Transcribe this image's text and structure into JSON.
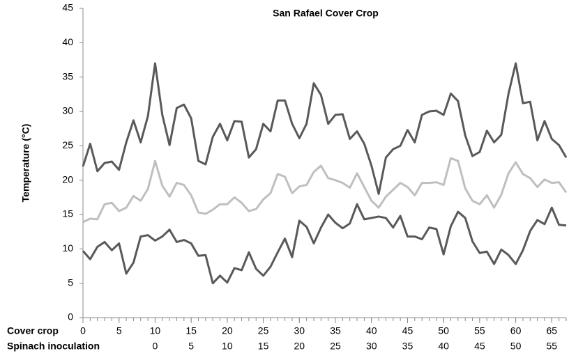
{
  "chart_data": {
    "type": "line",
    "title": "San Rafael Cover Crop",
    "ylabel": "Temperature (°C)",
    "xlabel": "Cover crop",
    "x2label": "Spinach inoculation",
    "x": [
      0,
      1,
      2,
      3,
      4,
      5,
      6,
      7,
      8,
      9,
      10,
      11,
      12,
      13,
      14,
      15,
      16,
      17,
      18,
      19,
      20,
      21,
      22,
      23,
      24,
      25,
      26,
      27,
      28,
      29,
      30,
      31,
      32,
      33,
      34,
      35,
      36,
      37,
      38,
      39,
      40,
      41,
      42,
      43,
      44,
      45,
      46,
      47,
      48,
      49,
      50,
      51,
      52,
      53,
      54,
      55,
      56,
      57,
      58,
      59,
      60,
      61,
      62,
      63,
      64,
      65,
      66,
      67
    ],
    "series": [
      {
        "color": "#595959",
        "values": [
          22,
          25.3,
          21.3,
          22.5,
          22.7,
          21.5,
          25.5,
          28.7,
          25.5,
          29.3,
          37,
          29.5,
          25.1,
          30.5,
          31,
          29,
          22.8,
          22.3,
          26.3,
          28.2,
          25.8,
          28.6,
          28.5,
          23.3,
          24.5,
          28.2,
          27.1,
          31.6,
          31.6,
          28.2,
          26.1,
          28.2,
          34.1,
          32.4,
          28.2,
          29.5,
          29.6,
          26,
          27.1,
          25.3,
          22.1,
          18,
          23.3,
          24.5,
          25,
          27.3,
          25.5,
          29.5,
          30,
          30.1,
          29.5,
          32.6,
          31.5,
          26.5,
          23.5,
          24.1,
          27.2,
          25.5,
          26.6,
          32.6,
          37,
          31.2,
          31.4,
          25.8,
          28.6,
          26,
          25.1,
          23.3
        ]
      },
      {
        "color": "#bfbfbf",
        "values": [
          13.9,
          14.4,
          14.3,
          16.5,
          16.7,
          15.5,
          16,
          17.7,
          17,
          18.7,
          22.8,
          19.2,
          17.6,
          19.6,
          19.3,
          17.8,
          15.3,
          15.1,
          15.7,
          16.5,
          16.5,
          17.5,
          16.7,
          15.5,
          15.8,
          17.2,
          18.1,
          20.9,
          20.5,
          18.1,
          19.1,
          19.3,
          21.2,
          22.1,
          20.3,
          20,
          19.6,
          18.9,
          21,
          19,
          17,
          16,
          17.6,
          18.6,
          19.6,
          19,
          17.8,
          19.6,
          19.6,
          19.7,
          19.3,
          23.2,
          22.8,
          18.8,
          17,
          16.5,
          17.8,
          16,
          17.9,
          21,
          22.6,
          20.9,
          20.3,
          19,
          20.1,
          19.6,
          19.7,
          18.2
        ]
      },
      {
        "color": "#595959",
        "values": [
          9.7,
          8.5,
          10.3,
          11,
          9.8,
          10.8,
          6.4,
          8,
          11.8,
          12,
          11.2,
          11.8,
          12.8,
          11,
          11.3,
          10.8,
          9,
          9.1,
          5,
          6.1,
          5.1,
          7.2,
          6.9,
          9.5,
          7.1,
          6.1,
          7.4,
          9.5,
          11.5,
          8.8,
          14.1,
          13.2,
          10.8,
          13.1,
          15,
          13.8,
          13,
          13.7,
          16.5,
          14.3,
          14.5,
          14.7,
          14.5,
          13.1,
          14.8,
          11.8,
          11.8,
          11.4,
          13.1,
          12.9,
          9.2,
          13.3,
          15.4,
          14.5,
          11.1,
          9.4,
          9.6,
          7.8,
          9.9,
          9.1,
          7.8,
          9.8,
          12.6,
          14.2,
          13.6,
          16,
          13.5,
          13.4
        ]
      }
    ],
    "xlim": [
      0,
      67
    ],
    "xticks": [
      0,
      5,
      10,
      15,
      20,
      25,
      30,
      35,
      40,
      45,
      50,
      55,
      60,
      65
    ],
    "x2ticks": [
      {
        "value": 10,
        "label": "0"
      },
      {
        "value": 15,
        "label": "5"
      },
      {
        "value": 20,
        "label": "10"
      },
      {
        "value": 25,
        "label": "15"
      },
      {
        "value": 30,
        "label": "20"
      },
      {
        "value": 35,
        "label": "25"
      },
      {
        "value": 40,
        "label": "30"
      },
      {
        "value": 45,
        "label": "35"
      },
      {
        "value": 50,
        "label": "40"
      },
      {
        "value": 55,
        "label": "45"
      },
      {
        "value": 60,
        "label": "50"
      },
      {
        "value": 65,
        "label": "55"
      }
    ],
    "ylim": [
      0,
      45
    ],
    "yticks": [
      0,
      5,
      10,
      15,
      20,
      25,
      30,
      35,
      40,
      45
    ],
    "grid": false
  }
}
